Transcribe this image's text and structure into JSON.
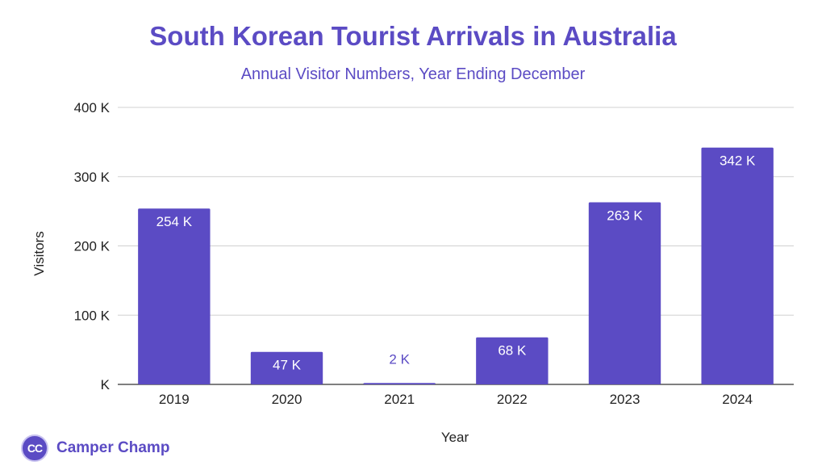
{
  "chart_data": {
    "type": "bar",
    "title": "South Korean Tourist Arrivals in Australia",
    "subtitle": "Annual Visitor Numbers, Year Ending December",
    "xlabel": "Year",
    "ylabel": "Visitors",
    "categories": [
      "2019",
      "2020",
      "2021",
      "2022",
      "2023",
      "2024"
    ],
    "values": [
      254,
      47,
      2,
      68,
      263,
      342
    ],
    "data_labels": [
      "254 K",
      "47 K",
      "2 K",
      "68 K",
      "263 K",
      "342 K"
    ],
    "ylim": [
      0,
      400
    ],
    "yticks": [
      0,
      100,
      200,
      300,
      400
    ],
    "ytick_labels": [
      "K",
      "100 K",
      "200 K",
      "300 K",
      "400 K"
    ],
    "grid": true,
    "legend": "none",
    "bar_color": "#5b4bc4"
  },
  "brand": {
    "logo_text": "CC",
    "name": "Camper Champ"
  }
}
